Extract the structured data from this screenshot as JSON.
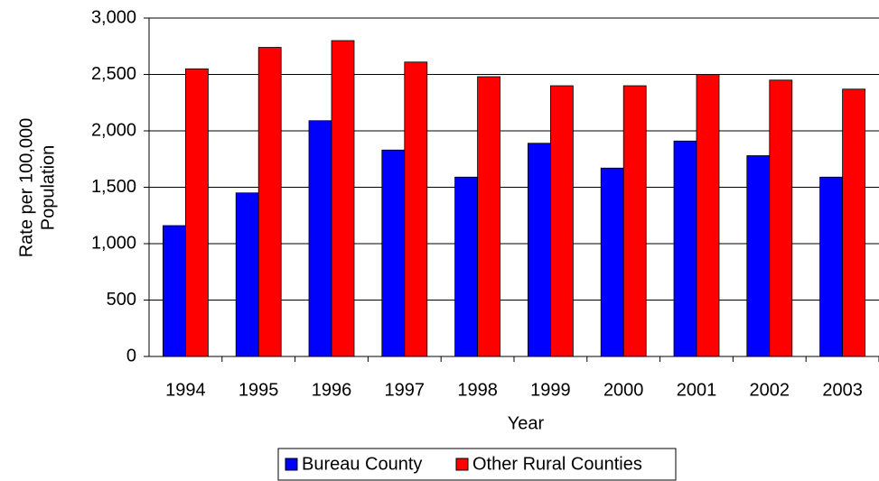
{
  "chart_data": {
    "type": "bar",
    "x_label": "Year",
    "y_label": [
      "Rate per 100,000",
      "Population"
    ],
    "categories": [
      "1994",
      "1995",
      "1996",
      "1997",
      "1998",
      "1999",
      "2000",
      "2001",
      "2002",
      "2003"
    ],
    "series": [
      {
        "name": "Bureau County",
        "color": "#0000ff",
        "values": [
          1160,
          1450,
          2090,
          1830,
          1590,
          1890,
          1670,
          1910,
          1780,
          1590
        ]
      },
      {
        "name": "Other Rural Counties",
        "color": "#ff0000",
        "values": [
          2550,
          2740,
          2800,
          2610,
          2480,
          2400,
          2400,
          2500,
          2450,
          2370
        ]
      }
    ],
    "ylim": [
      0,
      3000
    ],
    "yticks": [
      0,
      500,
      {
        "value": 1000,
        "label": "1,000"
      },
      {
        "value": 1500,
        "label": "1,500"
      },
      {
        "value": 2000,
        "label": "2,000"
      },
      {
        "value": 2500,
        "label": "2,500"
      },
      {
        "value": 3000,
        "label": "3,000"
      }
    ],
    "grid": true,
    "legend": "bottom"
  }
}
